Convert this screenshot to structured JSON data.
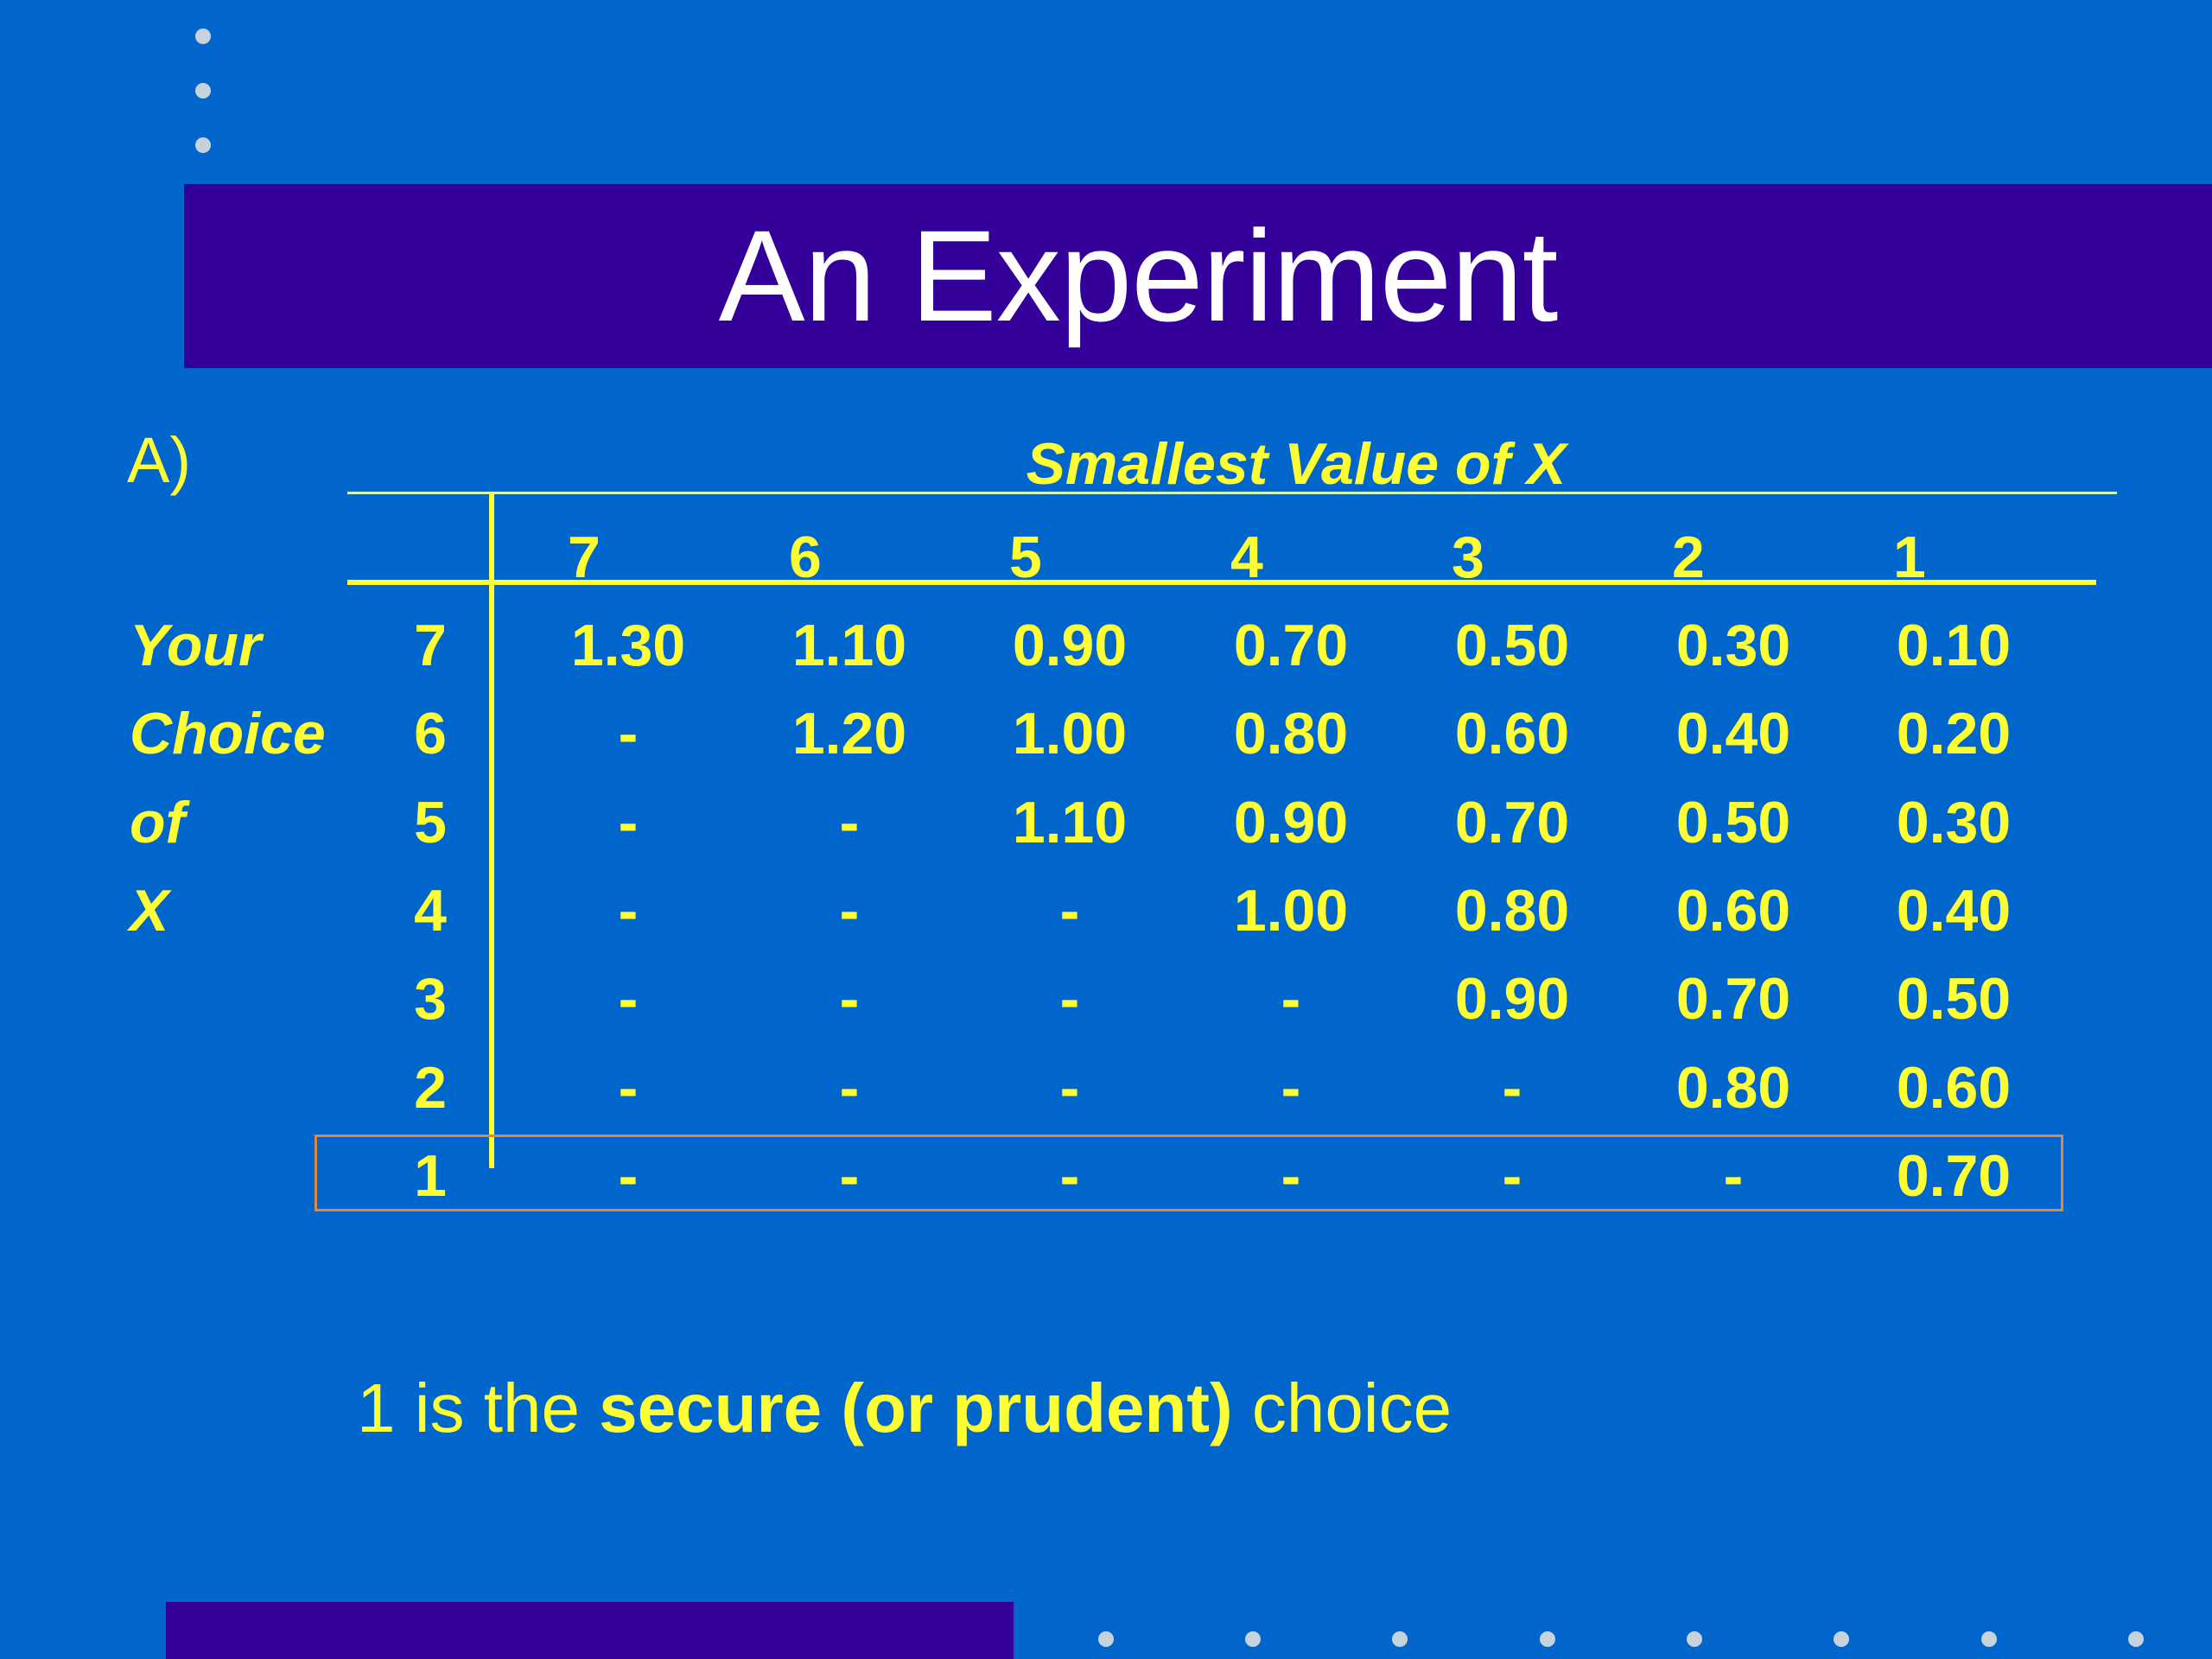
{
  "slide": {
    "title": "An Experiment",
    "section_label": "A)"
  },
  "table": {
    "column_header_title": "Smallest Value of X",
    "column_numbers": [
      "7",
      "6",
      "5",
      "4",
      "3",
      "2",
      "1"
    ],
    "row_header_lines": [
      "Your",
      "Choice",
      "of",
      "X"
    ],
    "rows": [
      {
        "choice": "7",
        "cells": [
          "1.30",
          "1.10",
          "0.90",
          "0.70",
          "0.50",
          "0.30",
          "0.10"
        ]
      },
      {
        "choice": "6",
        "cells": [
          "-",
          "1.20",
          "1.00",
          "0.80",
          "0.60",
          "0.40",
          "0.20"
        ]
      },
      {
        "choice": "5",
        "cells": [
          "-",
          "-",
          "1.10",
          "0.90",
          "0.70",
          "0.50",
          "0.30"
        ]
      },
      {
        "choice": "4",
        "cells": [
          "-",
          "-",
          "-",
          "1.00",
          "0.80",
          "0.60",
          "0.40"
        ]
      },
      {
        "choice": "3",
        "cells": [
          "-",
          "-",
          "-",
          "-",
          "0.90",
          "0.70",
          "0.50"
        ]
      },
      {
        "choice": "2",
        "cells": [
          "-",
          "-",
          "-",
          "-",
          "-",
          "0.80",
          "0.60"
        ]
      },
      {
        "choice": "1",
        "cells": [
          "-",
          "-",
          "-",
          "-",
          "-",
          "-",
          "0.70"
        ]
      }
    ],
    "highlighted_choice": "1"
  },
  "caption": {
    "prefix": "1 is the ",
    "emphasis": "secure (or prudent)",
    "suffix": " choice"
  },
  "colors": {
    "background": "#0066cc",
    "title_bar": "#330099",
    "text": "#ffff33",
    "title_text": "#ffffff",
    "highlight_border": "#dd8844",
    "decor_dots": "#c8d2dc"
  }
}
